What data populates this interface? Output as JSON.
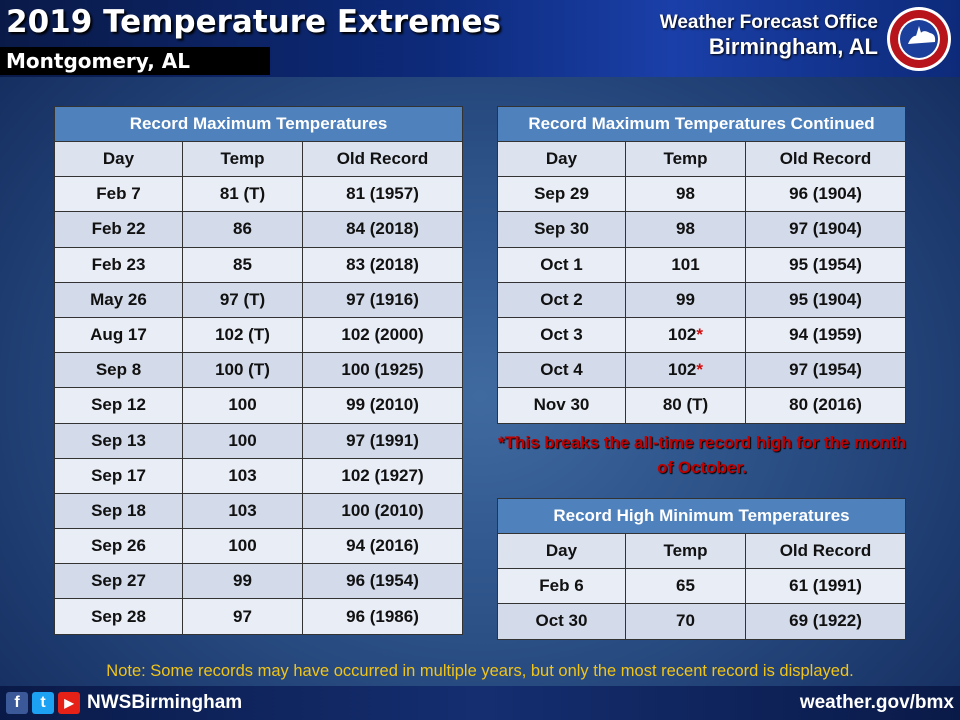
{
  "header": {
    "title": "2019 Temperature Extremes",
    "location": "Montgomery, AL",
    "office_line1": "Weather Forecast Office",
    "office_line2": "Birmingham, AL"
  },
  "columns": {
    "day": "Day",
    "temp": "Temp",
    "old": "Old Record"
  },
  "table_max": {
    "caption": "Record Maximum Temperatures",
    "rows": [
      {
        "day": "Feb 7",
        "temp": "81 (T)",
        "old": "81 (1957)"
      },
      {
        "day": "Feb 22",
        "temp": "86",
        "old": "84 (2018)"
      },
      {
        "day": "Feb 23",
        "temp": "85",
        "old": "83 (2018)"
      },
      {
        "day": "May 26",
        "temp": "97 (T)",
        "old": "97 (1916)"
      },
      {
        "day": "Aug 17",
        "temp": "102 (T)",
        "old": "102 (2000)"
      },
      {
        "day": "Sep 8",
        "temp": "100 (T)",
        "old": "100 (1925)"
      },
      {
        "day": "Sep 12",
        "temp": "100",
        "old": "99 (2010)"
      },
      {
        "day": "Sep 13",
        "temp": "100",
        "old": "97 (1991)"
      },
      {
        "day": "Sep 17",
        "temp": "103",
        "old": "102 (1927)"
      },
      {
        "day": "Sep 18",
        "temp": "103",
        "old": "100 (2010)"
      },
      {
        "day": "Sep 26",
        "temp": "100",
        "old": "94 (2016)"
      },
      {
        "day": "Sep 27",
        "temp": "99",
        "old": "96 (1954)"
      },
      {
        "day": "Sep 28",
        "temp": "97",
        "old": "96 (1986)"
      }
    ]
  },
  "table_cont": {
    "caption": "Record Maximum Temperatures Continued",
    "rows": [
      {
        "day": "Sep 29",
        "temp": "98",
        "old": "96 (1904)",
        "star": ""
      },
      {
        "day": "Sep 30",
        "temp": "98",
        "old": "97 (1904)",
        "star": ""
      },
      {
        "day": "Oct 1",
        "temp": "101",
        "old": "95 (1954)",
        "star": ""
      },
      {
        "day": "Oct 2",
        "temp": "99",
        "old": "95 (1904)",
        "star": ""
      },
      {
        "day": "Oct 3",
        "temp": "102",
        "old": "94 (1959)",
        "star": "*"
      },
      {
        "day": "Oct 4",
        "temp": "102",
        "old": "97 (1954)",
        "star": "*"
      },
      {
        "day": "Nov 30",
        "temp": "80 (T)",
        "old": "80 (2016)",
        "star": ""
      }
    ]
  },
  "alltime_note": "*This breaks the all-time record high for the month of October.",
  "table_min": {
    "caption": "Record High Minimum Temperatures",
    "rows": [
      {
        "day": "Feb 6",
        "temp": "65",
        "old": "61 (1991)"
      },
      {
        "day": "Oct 30",
        "temp": "70",
        "old": "69 (1922)"
      }
    ]
  },
  "footnote": "Note: Some records may have occurred in multiple years, but only the most recent record is displayed.",
  "footer": {
    "handle": "NWSBirmingham",
    "url": "weather.gov/bmx",
    "icons": [
      "facebook-icon",
      "twitter-icon",
      "youtube-icon"
    ]
  },
  "logo_text": "NATIONAL WEATHER SERVICE",
  "colors": {
    "header_cell": "#4f81bd",
    "note_red": "#c00000",
    "footnote": "#f0c419"
  }
}
